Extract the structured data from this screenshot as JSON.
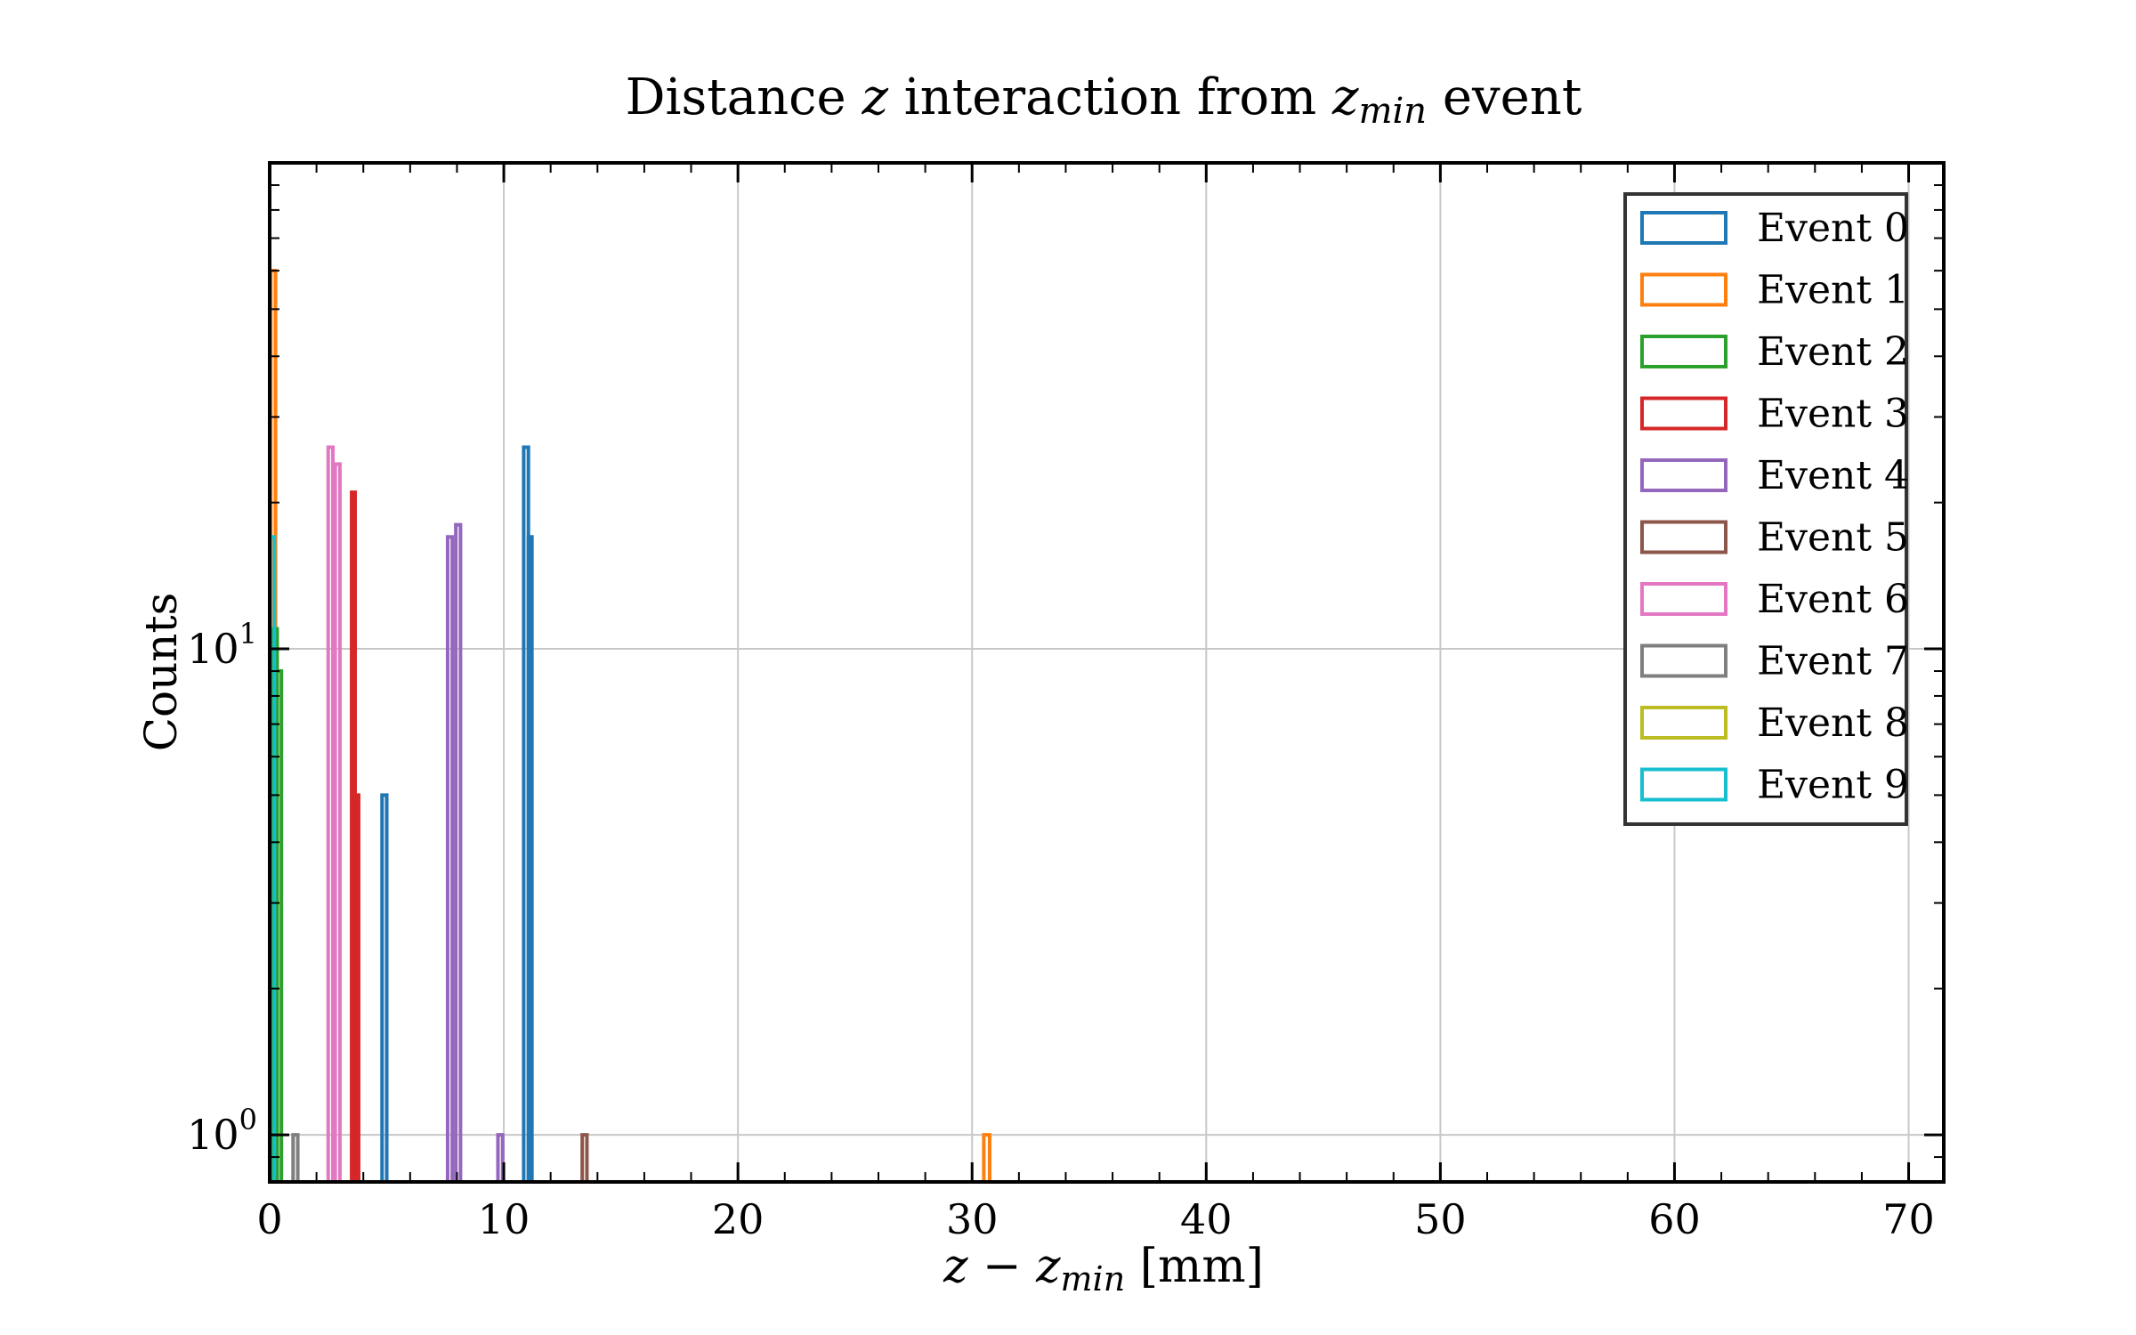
{
  "chart_data": {
    "type": "bar",
    "title": "Distance z interaction from z_min event",
    "title_parts": {
      "a": "Distance ",
      "var": "z",
      "b": " interaction from ",
      "sub_var": "z",
      "sub": "min",
      "c": " event"
    },
    "xlabel": "z − z_min [mm]",
    "xlabel_parts": {
      "a": "z",
      "op": " − ",
      "b": "z",
      "sub": "min",
      "unit": " [mm]"
    },
    "ylabel": "Counts",
    "x_scale": "linear",
    "y_scale": "log",
    "xlim": [
      0,
      71.5
    ],
    "ylim": [
      0.8,
      100
    ],
    "x_ticks": [
      0,
      10,
      20,
      30,
      40,
      50,
      60,
      70
    ],
    "x_tick_labels": [
      "0",
      "10",
      "20",
      "30",
      "40",
      "50",
      "60",
      "70"
    ],
    "y_ticks": [
      {
        "value": 1,
        "base": "10",
        "exp": "0"
      },
      {
        "value": 10,
        "base": "10",
        "exp": "1"
      }
    ],
    "grid": true,
    "histtype": "step",
    "legend_position": "top-right",
    "series": [
      {
        "name": "Event 0",
        "color": "#1f77b4",
        "bins": [
          [
            4.8,
            5.0,
            5
          ],
          [
            10.85,
            11.05,
            26
          ],
          [
            11.05,
            11.2,
            17
          ]
        ]
      },
      {
        "name": "Event 1",
        "color": "#ff7f0e",
        "bins": [
          [
            0.05,
            0.25,
            60
          ],
          [
            30.5,
            30.75,
            1
          ]
        ]
      },
      {
        "name": "Event 2",
        "color": "#2ca02c",
        "bins": [
          [
            0.15,
            0.32,
            11
          ],
          [
            0.32,
            0.5,
            9
          ]
        ]
      },
      {
        "name": "Event 3",
        "color": "#d62728",
        "bins": [
          [
            3.5,
            3.65,
            21
          ],
          [
            3.65,
            3.8,
            5
          ]
        ]
      },
      {
        "name": "Event 4",
        "color": "#9467bd",
        "bins": [
          [
            7.6,
            7.8,
            17
          ],
          [
            7.95,
            8.15,
            18
          ],
          [
            9.75,
            9.95,
            1
          ]
        ]
      },
      {
        "name": "Event 5",
        "color": "#8c564b",
        "bins": [
          [
            13.35,
            13.55,
            1
          ]
        ]
      },
      {
        "name": "Event 6",
        "color": "#e377c2",
        "bins": [
          [
            2.5,
            2.7,
            26
          ],
          [
            2.8,
            3.0,
            24
          ]
        ]
      },
      {
        "name": "Event 7",
        "color": "#7f7f7f",
        "bins": [
          [
            1.0,
            1.2,
            1
          ]
        ]
      },
      {
        "name": "Event 8",
        "color": "#bcbd22",
        "bins": []
      },
      {
        "name": "Event 9",
        "color": "#17becf",
        "bins": [
          [
            0.0,
            0.2,
            17
          ]
        ]
      }
    ]
  }
}
